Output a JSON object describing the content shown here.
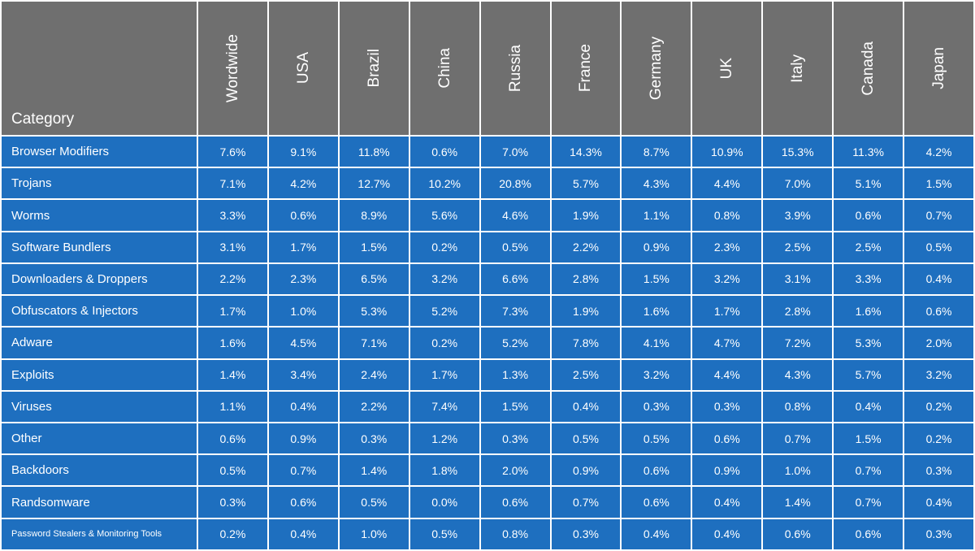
{
  "chart_data": {
    "type": "table",
    "columns": [
      "Category",
      "Wordwide",
      "USA",
      "Brazil",
      "China",
      "Russia",
      "France",
      "Germany",
      "UK",
      "Italy",
      "Canada",
      "Japan"
    ],
    "rows": [
      {
        "category": "Browser Modifiers",
        "values": [
          "7.6%",
          "9.1%",
          "11.8%",
          "0.6%",
          "7.0%",
          "14.3%",
          "8.7%",
          "10.9%",
          "15.3%",
          "11.3%",
          "4.2%"
        ]
      },
      {
        "category": "Trojans",
        "values": [
          "7.1%",
          "4.2%",
          "12.7%",
          "10.2%",
          "20.8%",
          "5.7%",
          "4.3%",
          "4.4%",
          "7.0%",
          "5.1%",
          "1.5%"
        ]
      },
      {
        "category": "Worms",
        "values": [
          "3.3%",
          "0.6%",
          "8.9%",
          "5.6%",
          "4.6%",
          "1.9%",
          "1.1%",
          "0.8%",
          "3.9%",
          "0.6%",
          "0.7%"
        ]
      },
      {
        "category": "Software Bundlers",
        "values": [
          "3.1%",
          "1.7%",
          "1.5%",
          "0.2%",
          "0.5%",
          "2.2%",
          "0.9%",
          "2.3%",
          "2.5%",
          "2.5%",
          "0.5%"
        ]
      },
      {
        "category": "Downloaders & Droppers",
        "values": [
          "2.2%",
          "2.3%",
          "6.5%",
          "3.2%",
          "6.6%",
          "2.8%",
          "1.5%",
          "3.2%",
          "3.1%",
          "3.3%",
          "0.4%"
        ]
      },
      {
        "category": "Obfuscators & Injectors",
        "values": [
          "1.7%",
          "1.0%",
          "5.3%",
          "5.2%",
          "7.3%",
          "1.9%",
          "1.6%",
          "1.7%",
          "2.8%",
          "1.6%",
          "0.6%"
        ]
      },
      {
        "category": "Adware",
        "values": [
          "1.6%",
          "4.5%",
          "7.1%",
          "0.2%",
          "5.2%",
          "7.8%",
          "4.1%",
          "4.7%",
          "7.2%",
          "5.3%",
          "2.0%"
        ]
      },
      {
        "category": "Exploits",
        "values": [
          "1.4%",
          "3.4%",
          "2.4%",
          "1.7%",
          "1.3%",
          "2.5%",
          "3.2%",
          "4.4%",
          "4.3%",
          "5.7%",
          "3.2%"
        ]
      },
      {
        "category": "Viruses",
        "values": [
          "1.1%",
          "0.4%",
          "2.2%",
          "7.4%",
          "1.5%",
          "0.4%",
          "0.3%",
          "0.3%",
          "0.8%",
          "0.4%",
          "0.2%"
        ]
      },
      {
        "category": "Other",
        "values": [
          "0.6%",
          "0.9%",
          "0.3%",
          "1.2%",
          "0.3%",
          "0.5%",
          "0.5%",
          "0.6%",
          "0.7%",
          "1.5%",
          "0.2%"
        ]
      },
      {
        "category": "Backdoors",
        "values": [
          "0.5%",
          "0.7%",
          "1.4%",
          "1.8%",
          "2.0%",
          "0.9%",
          "0.6%",
          "0.9%",
          "1.0%",
          "0.7%",
          "0.3%"
        ]
      },
      {
        "category": "Randsomware",
        "values": [
          "0.3%",
          "0.6%",
          "0.5%",
          "0.0%",
          "0.6%",
          "0.7%",
          "0.6%",
          "0.4%",
          "1.4%",
          "0.7%",
          "0.4%"
        ]
      },
      {
        "category": "Password Stealers & Monitoring Tools",
        "values": [
          "0.2%",
          "0.4%",
          "1.0%",
          "0.5%",
          "0.8%",
          "0.3%",
          "0.4%",
          "0.4%",
          "0.6%",
          "0.6%",
          "0.3%"
        ]
      }
    ]
  },
  "colors": {
    "header_bg": "#6f6f6f",
    "cell_bg": "#1e6fbf",
    "text": "#ffffff",
    "grid": "#ffffff"
  }
}
